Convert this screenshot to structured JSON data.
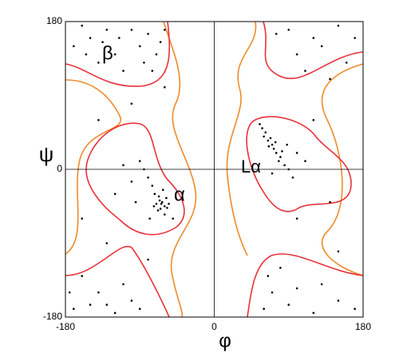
{
  "chart_data": {
    "type": "scatter",
    "x_label": "φ",
    "y_label": "ψ",
    "xlim": [
      -180,
      180
    ],
    "ylim": [
      -180,
      180
    ],
    "xticks": [
      -180,
      0,
      180
    ],
    "yticks": [
      -180,
      0,
      180
    ],
    "color": "#000000",
    "annotations": [
      "β",
      "α",
      "Lα"
    ],
    "x": [
      -63,
      -60,
      -66,
      -70,
      -58,
      -65,
      -72,
      -62,
      -55,
      -68,
      -75,
      -80,
      -85,
      -90,
      -60,
      -64,
      -67,
      -57,
      -73,
      -100,
      -110,
      -95,
      -120,
      -50,
      -78,
      -150,
      -120,
      -130,
      -90,
      -80,
      -70,
      -160,
      -140,
      -110,
      -100,
      -170,
      -65,
      -75,
      -135,
      -115,
      -155,
      -85,
      -60,
      60,
      65,
      70,
      72,
      68,
      75,
      80,
      62,
      58,
      78,
      85,
      90,
      95,
      66,
      74,
      82,
      55,
      100,
      110,
      88,
      70,
      90,
      120,
      150,
      100,
      130,
      160,
      75,
      110,
      170,
      140,
      -170,
      -150,
      -120,
      -100,
      -140,
      -160,
      -90,
      -110,
      -175,
      -130,
      60,
      70,
      90,
      120,
      150,
      65,
      100,
      170,
      80,
      130,
      -140,
      -100,
      -130,
      -60,
      120,
      140,
      150,
      100,
      -160,
      -80
    ],
    "y": [
      -40,
      -45,
      -38,
      -42,
      -35,
      -48,
      -30,
      -25,
      -42,
      -50,
      -20,
      -10,
      0,
      10,
      -55,
      -42,
      -33,
      -47,
      -45,
      -15,
      5,
      -40,
      -30,
      -60,
      -60,
      160,
      140,
      170,
      150,
      165,
      140,
      175,
      130,
      120,
      170,
      150,
      155,
      120,
      155,
      160,
      140,
      130,
      170,
      40,
      35,
      30,
      25,
      38,
      20,
      15,
      45,
      50,
      10,
      5,
      0,
      -10,
      28,
      33,
      22,
      55,
      20,
      10,
      30,
      -5,
      170,
      160,
      175,
      140,
      150,
      130,
      165,
      120,
      160,
      110,
      -170,
      -165,
      -175,
      -160,
      -150,
      -130,
      -170,
      -140,
      -150,
      -165,
      -170,
      -150,
      -165,
      -175,
      -160,
      -130,
      -145,
      -170,
      -120,
      -140,
      60,
      80,
      -90,
      100,
      60,
      -40,
      -100,
      -60,
      -60,
      -110
    ]
  }
}
